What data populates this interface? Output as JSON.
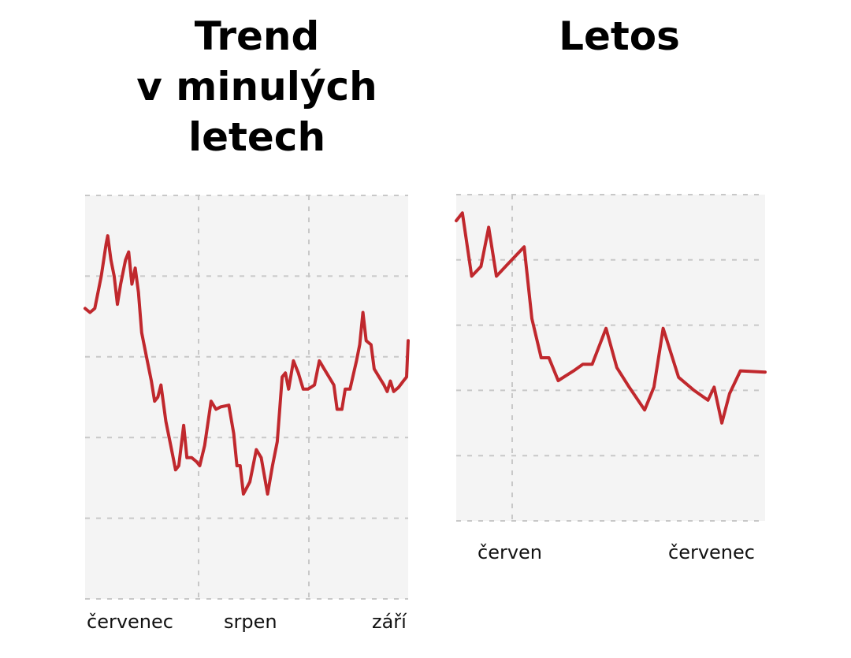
{
  "panels": [
    {
      "title_lines": [
        "Trend",
        "v minulých",
        "letech"
      ],
      "x_ticks": [
        "červenec",
        "srpen",
        "září"
      ]
    },
    {
      "title_lines": [
        "Letos"
      ],
      "x_ticks": [
        "červen",
        "červenec"
      ]
    }
  ],
  "colors": {
    "line": "#c0282d",
    "plot_background": "#f4f4f4",
    "grid": "#c8c8c8"
  },
  "chart_data": [
    {
      "type": "line",
      "title": "Trend v minulých letech",
      "xlabel": "",
      "ylabel": "",
      "x_ticks": [
        "červenec",
        "srpen",
        "září"
      ],
      "grid": true,
      "y_axis_labels": false,
      "ylim": [
        0,
        5
      ],
      "xlim": [
        0,
        100
      ],
      "series": [
        {
          "values": [
            [
              0,
              3.6
            ],
            [
              1.5,
              3.55
            ],
            [
              3,
              3.6
            ],
            [
              5,
              4.0
            ],
            [
              6.5,
              4.4
            ],
            [
              7,
              4.5
            ],
            [
              8,
              4.2
            ],
            [
              9,
              4.0
            ],
            [
              10,
              3.65
            ],
            [
              11,
              3.9
            ],
            [
              12.5,
              4.2
            ],
            [
              13.5,
              4.3
            ],
            [
              14.5,
              3.9
            ],
            [
              15.5,
              4.1
            ],
            [
              16.5,
              3.8
            ],
            [
              17.5,
              3.3
            ],
            [
              19,
              3.0
            ],
            [
              20.5,
              2.7
            ],
            [
              21.5,
              2.45
            ],
            [
              22.5,
              2.5
            ],
            [
              23.5,
              2.65
            ],
            [
              25,
              2.2
            ],
            [
              26.5,
              1.9
            ],
            [
              28,
              1.6
            ],
            [
              29,
              1.65
            ],
            [
              30.5,
              2.15
            ],
            [
              31.5,
              1.75
            ],
            [
              33,
              1.75
            ],
            [
              34.5,
              1.7
            ],
            [
              35.5,
              1.65
            ],
            [
              37,
              1.9
            ],
            [
              39,
              2.45
            ],
            [
              40.5,
              2.35
            ],
            [
              42,
              2.38
            ],
            [
              44.5,
              2.4
            ],
            [
              46,
              2.05
            ],
            [
              47,
              1.65
            ],
            [
              48,
              1.65
            ],
            [
              49,
              1.3
            ],
            [
              51,
              1.45
            ],
            [
              53,
              1.85
            ],
            [
              54.5,
              1.75
            ],
            [
              56.5,
              1.3
            ],
            [
              58,
              1.65
            ],
            [
              59.5,
              1.95
            ],
            [
              61,
              2.75
            ],
            [
              62,
              2.8
            ],
            [
              63,
              2.6
            ],
            [
              64.5,
              2.95
            ],
            [
              66,
              2.8
            ],
            [
              67.5,
              2.6
            ],
            [
              69,
              2.6
            ],
            [
              71,
              2.65
            ],
            [
              72.5,
              2.95
            ],
            [
              74,
              2.85
            ],
            [
              75.5,
              2.75
            ],
            [
              77,
              2.65
            ],
            [
              78,
              2.35
            ],
            [
              79.5,
              2.35
            ],
            [
              80.5,
              2.6
            ],
            [
              82,
              2.6
            ],
            [
              84,
              2.95
            ],
            [
              85,
              3.15
            ],
            [
              86,
              3.55
            ],
            [
              87,
              3.2
            ],
            [
              88.5,
              3.15
            ],
            [
              89.5,
              2.85
            ],
            [
              91,
              2.75
            ],
            [
              92.5,
              2.65
            ],
            [
              93.5,
              2.57
            ],
            [
              94.5,
              2.7
            ],
            [
              95.5,
              2.57
            ],
            [
              97,
              2.62
            ],
            [
              98.5,
              2.7
            ],
            [
              99.5,
              2.75
            ],
            [
              100,
              3.2
            ]
          ]
        }
      ]
    },
    {
      "type": "line",
      "title": "Letos",
      "xlabel": "",
      "ylabel": "",
      "x_ticks": [
        "červen",
        "červenec"
      ],
      "grid": true,
      "y_axis_labels": false,
      "ylim": [
        0,
        5
      ],
      "xlim": [
        0,
        100
      ],
      "series": [
        {
          "values": [
            [
              0,
              4.6
            ],
            [
              2,
              4.72
            ],
            [
              5,
              3.75
            ],
            [
              8,
              3.9
            ],
            [
              10.5,
              4.5
            ],
            [
              13,
              3.75
            ],
            [
              17,
              3.95
            ],
            [
              21,
              4.15
            ],
            [
              22,
              4.2
            ],
            [
              24.5,
              3.1
            ],
            [
              27.5,
              2.5
            ],
            [
              30,
              2.5
            ],
            [
              33,
              2.15
            ],
            [
              38,
              2.3
            ],
            [
              41,
              2.4
            ],
            [
              44,
              2.4
            ],
            [
              48.5,
              2.95
            ],
            [
              52,
              2.35
            ],
            [
              56,
              2.05
            ],
            [
              61,
              1.7
            ],
            [
              64,
              2.05
            ],
            [
              67,
              2.95
            ],
            [
              72,
              2.2
            ],
            [
              77,
              2.0
            ],
            [
              81.5,
              1.85
            ],
            [
              83.5,
              2.05
            ],
            [
              86,
              1.5
            ],
            [
              88.5,
              1.95
            ],
            [
              92,
              2.3
            ],
            [
              100,
              2.28
            ]
          ]
        }
      ]
    }
  ]
}
